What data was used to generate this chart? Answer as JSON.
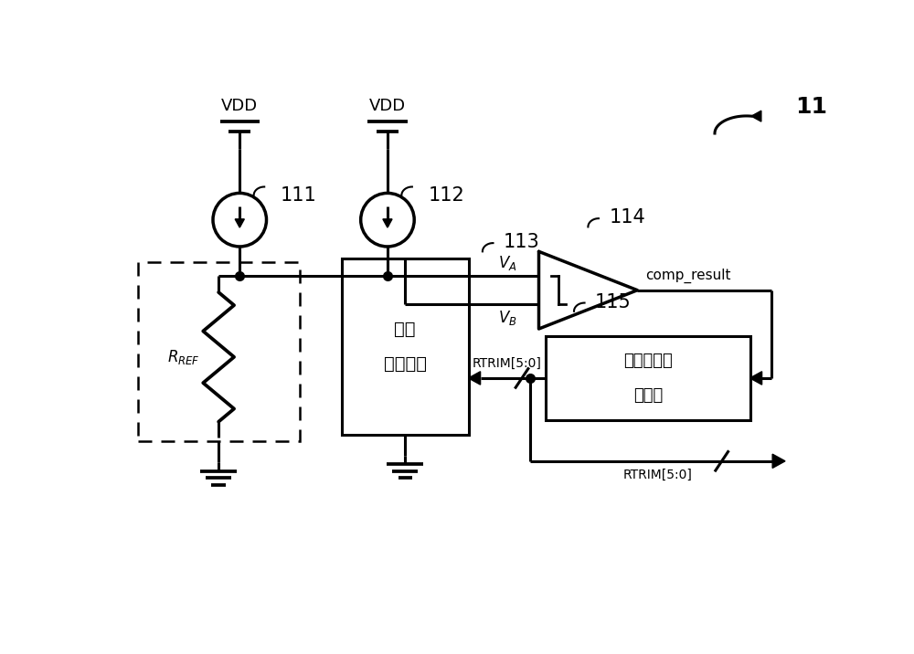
{
  "bg_color": "#ffffff",
  "line_color": "#000000",
  "fig_width": 10.0,
  "fig_height": 7.16,
  "label_11": "11",
  "label_111": "111",
  "label_112": "112",
  "label_113": "113",
  "label_114": "114",
  "label_115": "115",
  "label_VDD1": "VDD",
  "label_VDD2": "VDD",
  "label_VA": "$V_A$",
  "label_VB": "$V_B$",
  "label_comp": "comp_result",
  "label_RTRIM1": "RTRIM[5:0]",
  "label_RTRIM2": "RTRIM[5:0]",
  "label_block113_line1": "第一",
  "label_block113_line2": "电阵阵列",
  "label_block115_line1": "逐次逃近逻",
  "label_block115_line2": "辑模块",
  "label_RREF": "$R_{REF}$"
}
